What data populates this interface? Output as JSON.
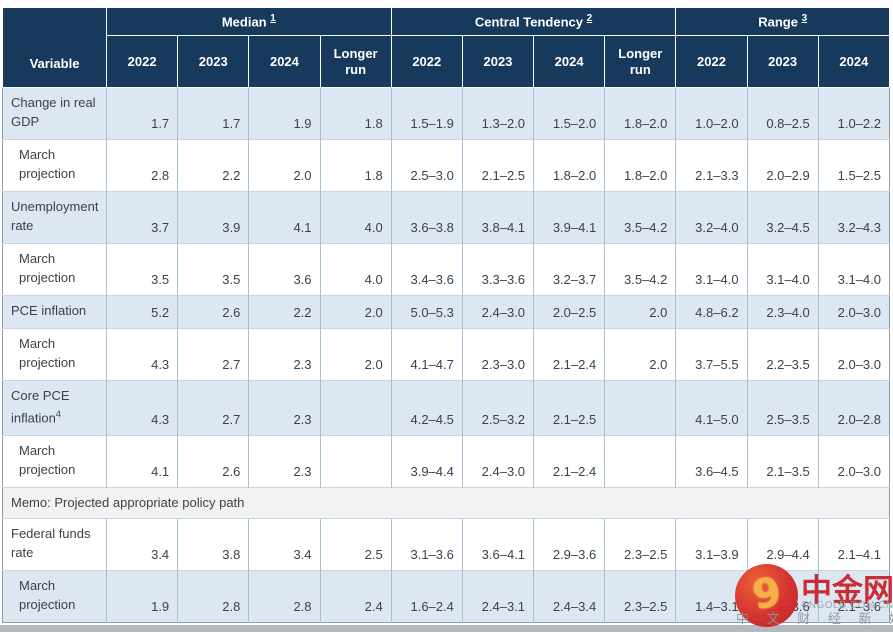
{
  "chart_data": {
    "type": "table",
    "header": {
      "corner_label": "Variable",
      "groups": [
        {
          "label": "Median",
          "footnote": "1",
          "columns": [
            "2022",
            "2023",
            "2024",
            "Longer run"
          ]
        },
        {
          "label": "Central Tendency",
          "footnote": "2",
          "columns": [
            "2022",
            "2023",
            "2024",
            "Longer run"
          ]
        },
        {
          "label": "Range",
          "footnote": "3",
          "columns": [
            "2022",
            "2023",
            "2024"
          ]
        }
      ]
    },
    "rows": [
      {
        "label": "Change in real GDP",
        "indent": false,
        "shade": "blue",
        "values": [
          "1.7",
          "1.7",
          "1.9",
          "1.8",
          "1.5–1.9",
          "1.3–2.0",
          "1.5–2.0",
          "1.8–2.0",
          "1.0–2.0",
          "0.8–2.5",
          "1.0–2.2"
        ]
      },
      {
        "label": "March projection",
        "indent": true,
        "shade": "white",
        "values": [
          "2.8",
          "2.2",
          "2.0",
          "1.8",
          "2.5–3.0",
          "2.1–2.5",
          "1.8–2.0",
          "1.8–2.0",
          "2.1–3.3",
          "2.0–2.9",
          "1.5–2.5"
        ]
      },
      {
        "label": "Unemployment rate",
        "indent": false,
        "shade": "blue",
        "values": [
          "3.7",
          "3.9",
          "4.1",
          "4.0",
          "3.6–3.8",
          "3.8–4.1",
          "3.9–4.1",
          "3.5–4.2",
          "3.2–4.0",
          "3.2–4.5",
          "3.2–4.3"
        ]
      },
      {
        "label": "March projection",
        "indent": true,
        "shade": "white",
        "values": [
          "3.5",
          "3.5",
          "3.6",
          "4.0",
          "3.4–3.6",
          "3.3–3.6",
          "3.2–3.7",
          "3.5–4.2",
          "3.1–4.0",
          "3.1–4.0",
          "3.1–4.0"
        ]
      },
      {
        "label": "PCE inflation",
        "indent": false,
        "shade": "blue",
        "values": [
          "5.2",
          "2.6",
          "2.2",
          "2.0",
          "5.0–5.3",
          "2.4–3.0",
          "2.0–2.5",
          "2.0",
          "4.8–6.2",
          "2.3–4.0",
          "2.0–3.0"
        ]
      },
      {
        "label": "March projection",
        "indent": true,
        "shade": "white",
        "values": [
          "4.3",
          "2.7",
          "2.3",
          "2.0",
          "4.1–4.7",
          "2.3–3.0",
          "2.1–2.4",
          "2.0",
          "3.7–5.5",
          "2.2–3.5",
          "2.0–3.0"
        ]
      },
      {
        "label": "Core PCE inflation",
        "footnote": "4",
        "indent": false,
        "shade": "blue",
        "values": [
          "4.3",
          "2.7",
          "2.3",
          "",
          "4.2–4.5",
          "2.5–3.2",
          "2.1–2.5",
          "",
          "4.1–5.0",
          "2.5–3.5",
          "2.0–2.8"
        ]
      },
      {
        "label": "March projection",
        "indent": true,
        "shade": "white",
        "values": [
          "4.1",
          "2.6",
          "2.3",
          "",
          "3.9–4.4",
          "2.4–3.0",
          "2.1–2.4",
          "",
          "3.6–4.5",
          "2.1–3.5",
          "2.0–3.0"
        ]
      },
      {
        "type": "memo",
        "label": "Memo: Projected appropriate policy path"
      },
      {
        "label": "Federal funds rate",
        "indent": false,
        "shade": "white",
        "values": [
          "3.4",
          "3.8",
          "3.4",
          "2.5",
          "3.1–3.6",
          "3.6–4.1",
          "2.9–3.6",
          "2.3–2.5",
          "3.1–3.9",
          "2.9–4.4",
          "2.1–4.1"
        ]
      },
      {
        "label": "March projection",
        "indent": true,
        "shade": "blue",
        "values": [
          "1.9",
          "2.8",
          "2.8",
          "2.4",
          "1.6–2.4",
          "2.4–3.1",
          "2.4–3.4",
          "2.3–2.5",
          "1.4–3.1",
          "2.1–3.6",
          "2.1–3.6"
        ]
      }
    ]
  },
  "watermark": {
    "brand": "中金网",
    "domain": "CNGOLD.COM.CN",
    "tagline": "中 文 财 经 新 媒 体",
    "logo_glyph": "9"
  },
  "colors": {
    "header_bg": "#17395c",
    "row_blue": "#dce7f2",
    "memo_bg": "#f2f2f2",
    "brand_red": "#c9252c",
    "logo_gold": "#f6b03c"
  }
}
